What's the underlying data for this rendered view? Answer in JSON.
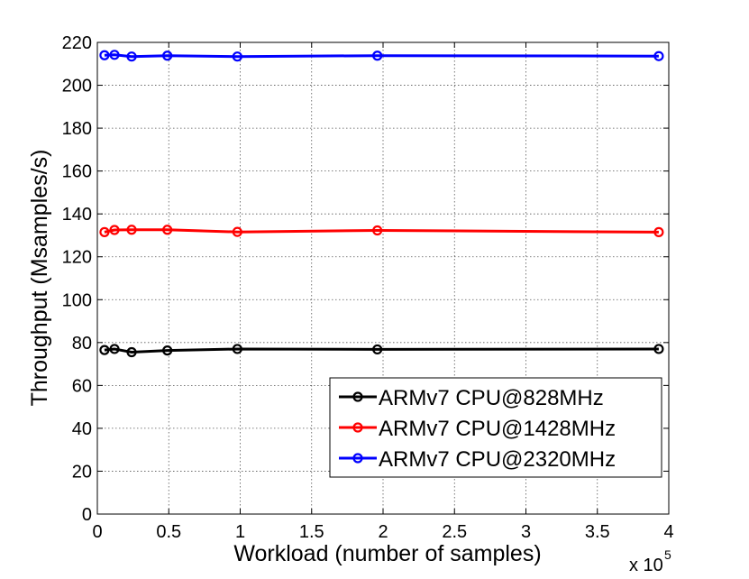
{
  "chart_data": {
    "type": "line",
    "xlabel": "Workload (number of samples)",
    "ylabel": "Throughput (Msamples/s)",
    "x_multiplier_label": "x 10",
    "x_multiplier_exponent": "5",
    "xlim": [
      0,
      4
    ],
    "ylim": [
      0,
      220
    ],
    "x_ticks": [
      0,
      0.5,
      1,
      1.5,
      2,
      2.5,
      3,
      3.5,
      4
    ],
    "x_tick_labels": [
      "0",
      "0.5",
      "1",
      "1.5",
      "2",
      "2.5",
      "3",
      "3.5",
      "4"
    ],
    "y_ticks": [
      0,
      20,
      40,
      60,
      80,
      100,
      120,
      140,
      160,
      180,
      200,
      220
    ],
    "y_tick_labels": [
      "0",
      "20",
      "40",
      "60",
      "80",
      "100",
      "120",
      "140",
      "160",
      "180",
      "200",
      "220"
    ],
    "grid": true,
    "legend_position": "bottom-right",
    "x": [
      0.05,
      0.12,
      0.24,
      0.49,
      0.98,
      1.96,
      3.93
    ],
    "series": [
      {
        "name": "ARMv7 CPU@828MHz",
        "color": "#000000",
        "values": [
          76.5,
          77,
          75.5,
          76.3,
          77,
          76.8,
          77
        ]
      },
      {
        "name": "ARMv7 CPU@1428MHz",
        "color": "#ff0000",
        "values": [
          131.5,
          132.5,
          132.6,
          132.6,
          131.6,
          132.3,
          131.5
        ]
      },
      {
        "name": "ARMv7 CPU@2320MHz",
        "color": "#0000ff",
        "values": [
          214,
          214.2,
          213.4,
          213.8,
          213.4,
          213.8,
          213.6
        ]
      }
    ]
  }
}
